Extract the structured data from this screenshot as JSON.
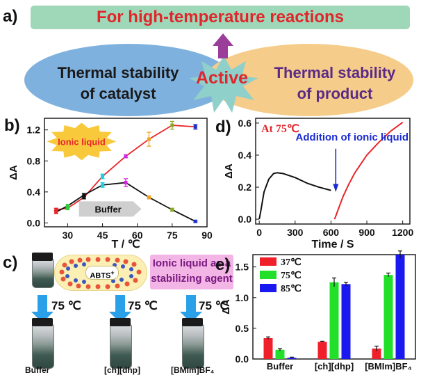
{
  "panel_a": {
    "letter": "a)",
    "banner": "For high-temperature reactions",
    "left_text": [
      "Thermal stability",
      "of catalyst"
    ],
    "right_text": [
      "Thermal stability",
      "of product"
    ],
    "center": "Active",
    "colors": {
      "banner_bg": "#9fd8b8",
      "left_ellipse": "#7fb1de",
      "right_ellipse": "#f5cc8a",
      "star": "#8fd0ca",
      "arrow": "#9b3e9a",
      "accent": "#e0262b"
    }
  },
  "panel_c": {
    "letter": "c)",
    "abts": "ABTS",
    "abts_charge": "+",
    "callout": [
      "Ionic liquid as a",
      "stabilizing agent"
    ],
    "temps": [
      "75 ℃",
      "75 ℃",
      "75 ℃"
    ],
    "vials": [
      "Buffer",
      "[ch][dhp]",
      "[BMIm]BF₄"
    ]
  },
  "chart_data": [
    {
      "panel": "b)",
      "type": "line",
      "xlabel": "T / ℃",
      "ylabel": "ΔA",
      "xlim": [
        20,
        90
      ],
      "ylim": [
        -0.05,
        1.35
      ],
      "xticks": [
        30,
        45,
        60,
        75,
        90
      ],
      "yticks": [
        0.0,
        0.4,
        0.8,
        1.2
      ],
      "series": [
        {
          "name": "Ionic liquid",
          "color": "#e8262a",
          "x": [
            25,
            30,
            37,
            45,
            55,
            65,
            75,
            85
          ],
          "y": [
            0.17,
            0.19,
            0.33,
            0.6,
            0.86,
            1.08,
            1.26,
            1.24
          ],
          "err": [
            0.02,
            0.02,
            0.02,
            0.03,
            0.02,
            0.09,
            0.05,
            0.03
          ]
        },
        {
          "name": "Buffer",
          "color": "#111111",
          "x": [
            25,
            30,
            37,
            45,
            55,
            65,
            75,
            85
          ],
          "y": [
            0.14,
            0.22,
            0.36,
            0.49,
            0.52,
            0.33,
            0.17,
            0.02
          ],
          "err": [
            0.02,
            0.02,
            0.02,
            0.03,
            0.05,
            0.02,
            0.02,
            0.01
          ]
        }
      ],
      "marker_colors": [
        "#e8262a",
        "#2ecc40",
        "#111111",
        "#1ad0e0",
        "#d126e0",
        "#f0a020",
        "#88aa22",
        "#2030d0"
      ]
    },
    {
      "panel": "d)",
      "type": "line",
      "title": "At 75℃",
      "annotation": "Addition of ionic liquid",
      "xlabel": "Time / S",
      "ylabel": "ΔA",
      "xlim": [
        -30,
        1260
      ],
      "ylim": [
        -0.03,
        0.63
      ],
      "xticks": [
        0,
        300,
        600,
        900,
        1200
      ],
      "yticks": [
        0.0,
        0.2,
        0.4,
        0.6
      ],
      "series": [
        {
          "color": "#111111",
          "x": [
            0,
            15,
            40,
            80,
            120,
            150,
            200,
            300,
            400,
            500,
            600
          ],
          "y": [
            0.0,
            0.06,
            0.17,
            0.25,
            0.285,
            0.29,
            0.285,
            0.26,
            0.225,
            0.2,
            0.18
          ]
        },
        {
          "color": "#e8262a",
          "x": [
            630,
            660,
            700,
            750,
            800,
            900,
            1000,
            1100,
            1200
          ],
          "y": [
            0.0,
            0.06,
            0.14,
            0.22,
            0.29,
            0.4,
            0.48,
            0.55,
            0.605
          ]
        }
      ]
    },
    {
      "panel": "e)",
      "type": "bar",
      "ylabel": "ΔA",
      "ylim": [
        0,
        1.7
      ],
      "yticks": [
        0.0,
        0.5,
        1.0,
        1.5
      ],
      "categories": [
        "Buffer",
        "[ch][dhp]",
        "[BMIm]BF₄"
      ],
      "series": [
        {
          "name": "37℃",
          "color": "#f0202a",
          "values": [
            0.34,
            0.28,
            0.17
          ],
          "err": [
            0.02,
            0.01,
            0.04
          ]
        },
        {
          "name": "75℃",
          "color": "#22e02a",
          "values": [
            0.15,
            1.25,
            1.37
          ],
          "err": [
            0.02,
            0.07,
            0.03
          ]
        },
        {
          "name": "85℃",
          "color": "#1a1af0",
          "values": [
            0.02,
            1.22,
            1.7
          ],
          "err": [
            0.01,
            0.03,
            0.06
          ]
        }
      ]
    }
  ]
}
